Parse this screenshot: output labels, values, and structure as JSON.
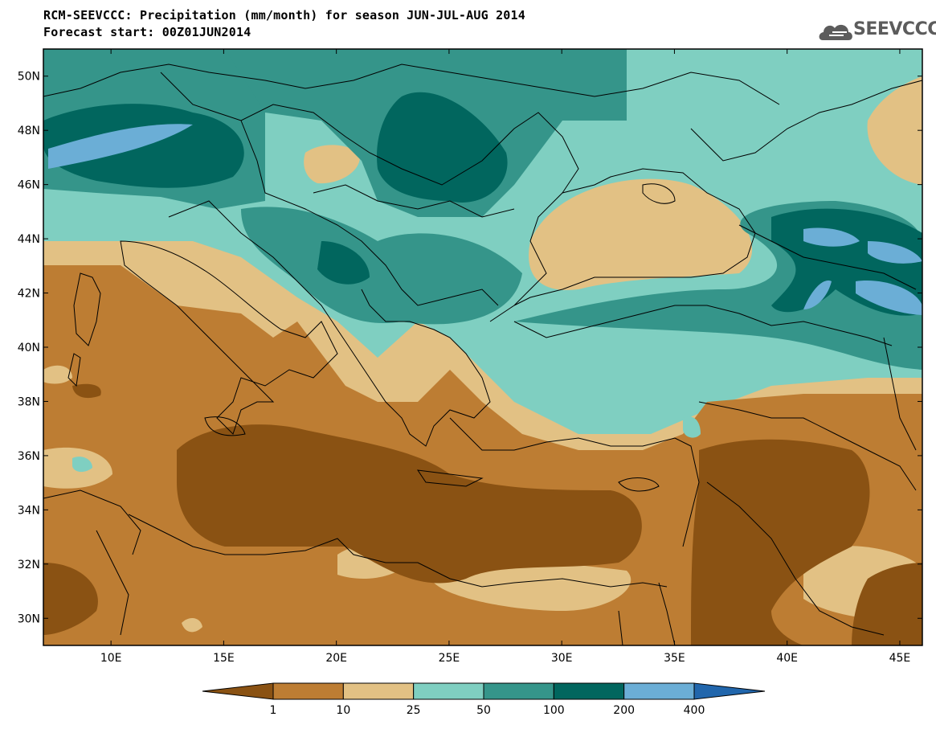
{
  "header": {
    "title_line1": "RCM-SEEVCCC: Precipitation (mm/month) for season JUN-JUL-AUG 2014",
    "title_line2": "Forecast start: 00Z01JUN2014"
  },
  "logo": {
    "text": "SEEVCCC",
    "icon": "cloud-icon",
    "color": "#5c5c5c"
  },
  "map": {
    "lat_labels": [
      "50N",
      "48N",
      "46N",
      "44N",
      "42N",
      "40N",
      "38N",
      "36N",
      "34N",
      "32N",
      "30N"
    ],
    "lon_labels": [
      "10E",
      "15E",
      "20E",
      "25E",
      "30E",
      "35E",
      "40E",
      "45E"
    ],
    "lon_range": [
      7,
      46
    ],
    "lat_range": [
      29,
      51
    ]
  },
  "legend": {
    "boundaries": [
      "1",
      "10",
      "25",
      "50",
      "100",
      "200",
      "400"
    ],
    "colors": [
      "#8a5213",
      "#bd7d33",
      "#e2c184",
      "#7fcfc1",
      "#35958a",
      "#01665e",
      "#6baed6",
      "#2166ac"
    ]
  }
}
